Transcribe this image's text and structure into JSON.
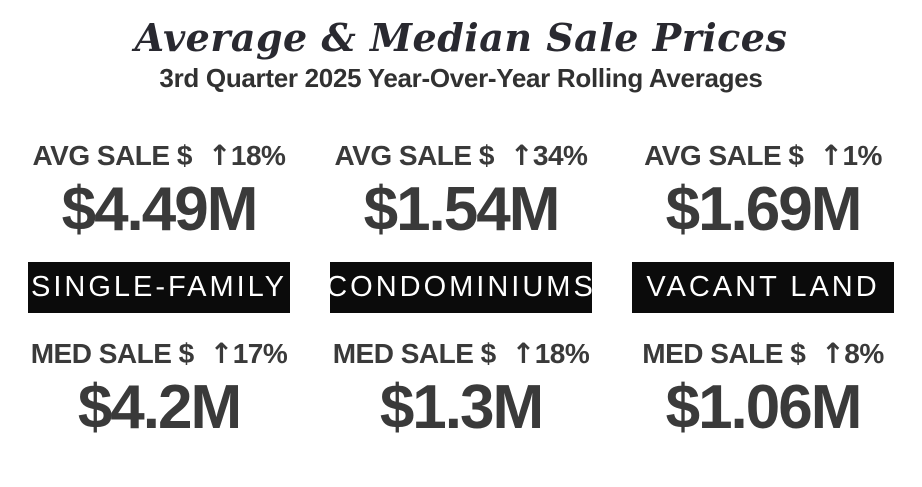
{
  "header": {
    "title": "Average & Median Sale Prices",
    "subtitle": "3rd Quarter 2025 Year-Over-Year Rolling Averages"
  },
  "columns": [
    {
      "category": "SINGLE-FAMILY",
      "avg": {
        "label": "AVG SALE $",
        "arrow": "↑",
        "change": "18%",
        "value": "$4.49M"
      },
      "med": {
        "label": "MED SALE $",
        "arrow": "↑",
        "change": "17%",
        "value": "$4.2M"
      }
    },
    {
      "category": "CONDOMINIUMS",
      "avg": {
        "label": "AVG SALE $",
        "arrow": "↑",
        "change": "34%",
        "value": "$1.54M"
      },
      "med": {
        "label": "MED SALE $",
        "arrow": "↑",
        "change": "18%",
        "value": "$1.3M"
      }
    },
    {
      "category": "VACANT LAND",
      "avg": {
        "label": "AVG SALE $",
        "arrow": "↑",
        "change": "1%",
        "value": "$1.69M"
      },
      "med": {
        "label": "MED SALE $",
        "arrow": "↑",
        "change": "8%",
        "value": "$1.06M"
      }
    }
  ],
  "colors": {
    "background": "#ffffff",
    "title_text": "#292930",
    "stat_text": "#3a3a3a",
    "banner_bg": "#0b0b0b",
    "banner_text": "#ffffff"
  },
  "chart_data": {
    "type": "table",
    "title": "Average & Median Sale Prices",
    "subtitle": "3rd Quarter 2025 Year-Over-Year Rolling Averages",
    "categories": [
      "SINGLE-FAMILY",
      "CONDOMINIUMS",
      "VACANT LAND"
    ],
    "series": [
      {
        "name": "Average Sale Price (millions USD)",
        "values": [
          4.49,
          1.54,
          1.69
        ],
        "yoy_change_percent": [
          18,
          34,
          1
        ],
        "change_direction": [
          "up",
          "up",
          "up"
        ]
      },
      {
        "name": "Median Sale Price (millions USD)",
        "values": [
          4.2,
          1.3,
          1.06
        ],
        "yoy_change_percent": [
          17,
          18,
          8
        ],
        "change_direction": [
          "up",
          "up",
          "up"
        ]
      }
    ],
    "legend_position": "none",
    "grid": false
  }
}
